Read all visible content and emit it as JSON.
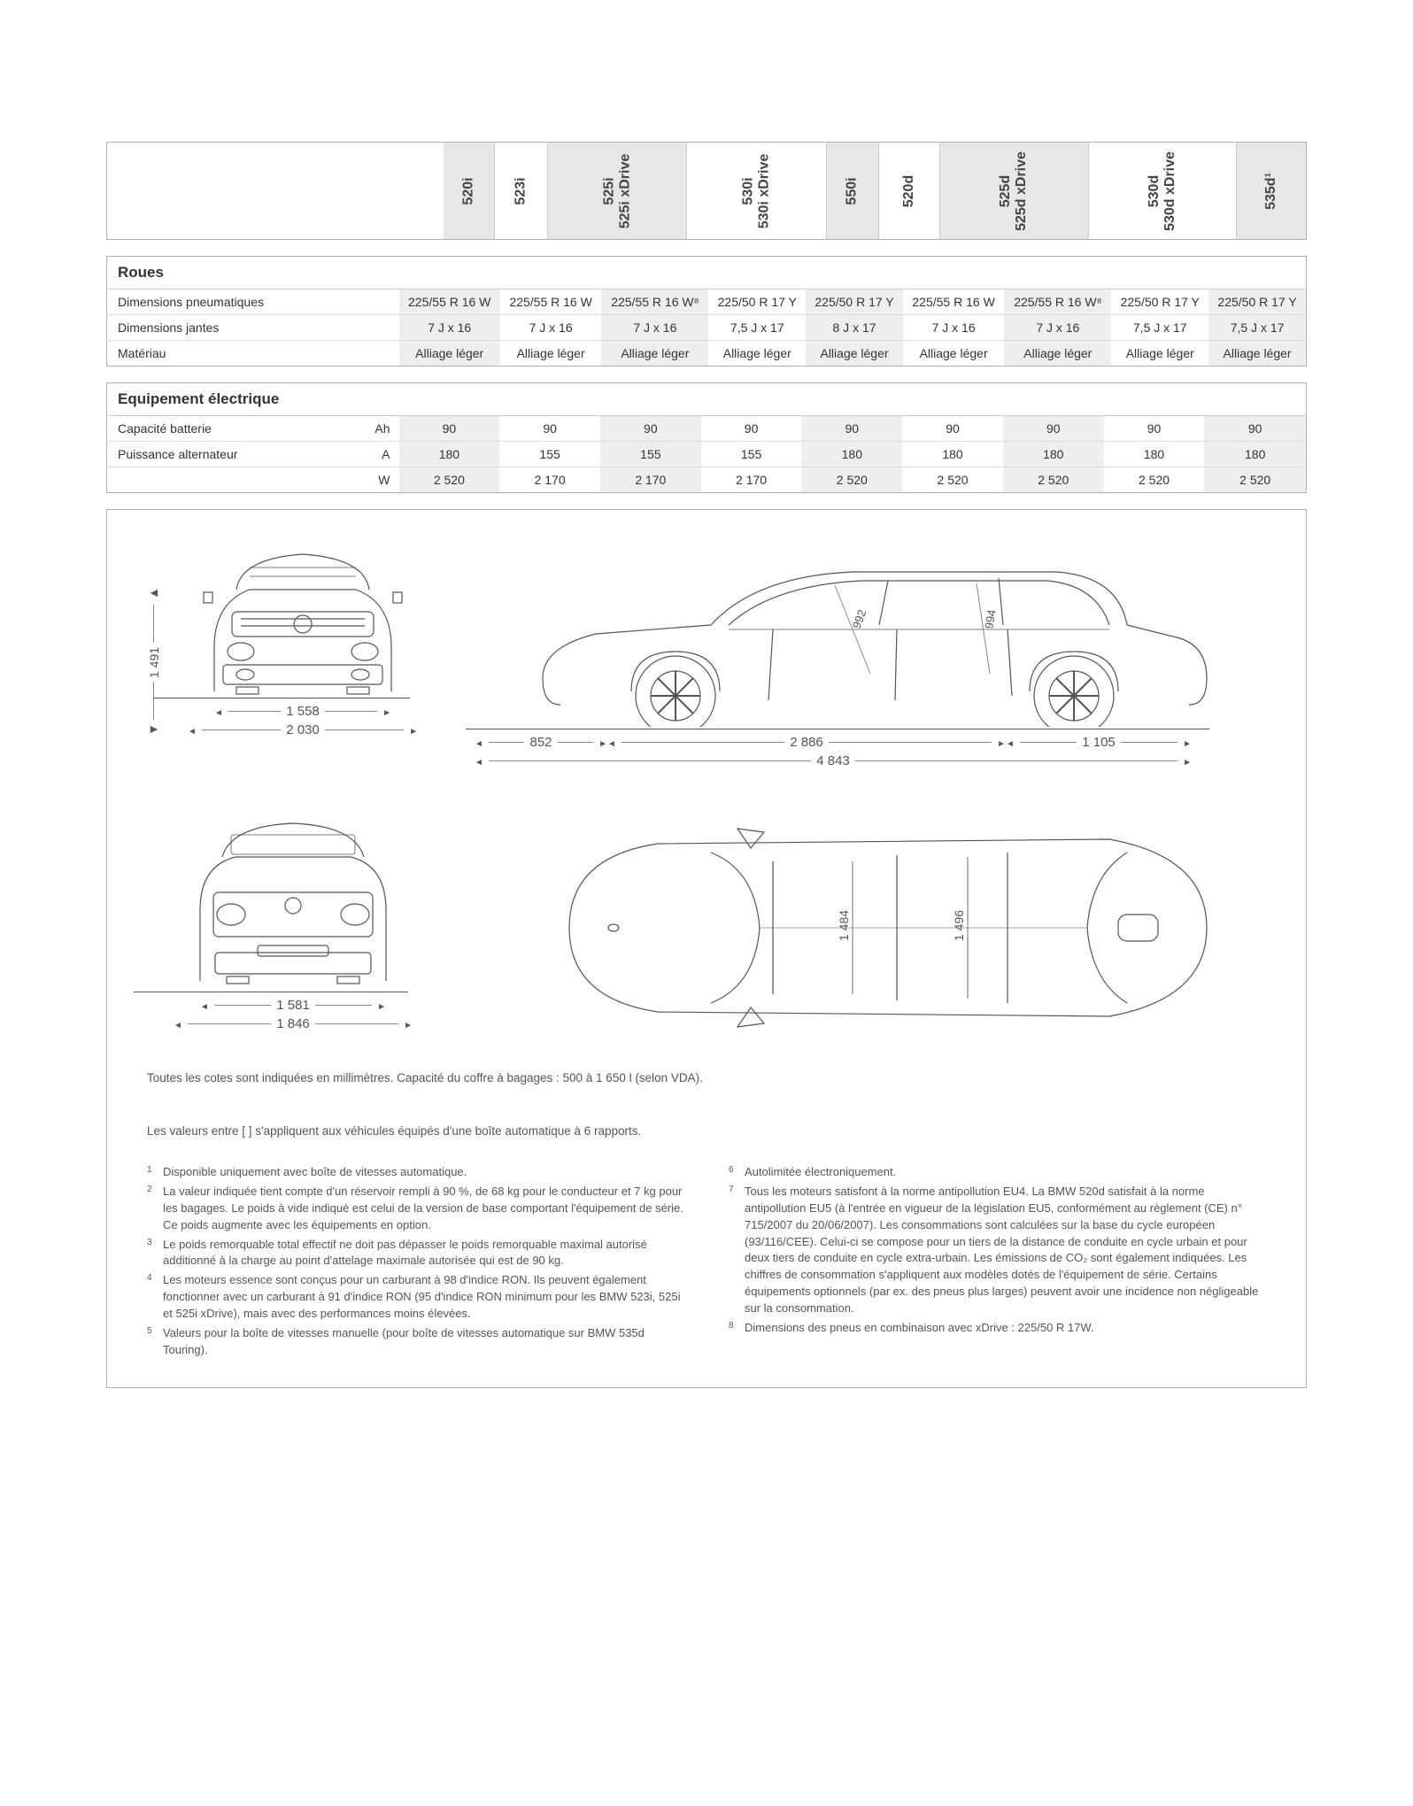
{
  "columns": [
    {
      "label": "520i",
      "shaded": true
    },
    {
      "label": "523i",
      "shaded": false
    },
    {
      "label": "525i\n525i xDrive",
      "shaded": true
    },
    {
      "label": "530i\n530i xDrive",
      "shaded": false
    },
    {
      "label": "550i",
      "shaded": true
    },
    {
      "label": "520d",
      "shaded": false
    },
    {
      "label": "525d\n525d xDrive",
      "shaded": true
    },
    {
      "label": "530d\n530d xDrive",
      "shaded": false
    },
    {
      "label": "535d¹",
      "shaded": true
    }
  ],
  "col_label_width": 380,
  "sections": [
    {
      "title": "Roues",
      "rows": [
        {
          "label": "Dimensions pneumatiques",
          "unit": "",
          "values": [
            "225/55 R 16 W",
            "225/55 R 16 W",
            "225/55 R 16 W⁸",
            "225/50 R 17 Y",
            "225/50 R 17 Y",
            "225/55 R 16 W",
            "225/55 R 16 W⁸",
            "225/50 R 17 Y",
            "225/50 R 17 Y"
          ]
        },
        {
          "label": "Dimensions jantes",
          "unit": "",
          "values": [
            "7 J x 16",
            "7 J x 16",
            "7 J x 16",
            "7,5 J x 17",
            "8 J x 17",
            "7 J x 16",
            "7 J x 16",
            "7,5 J x 17",
            "7,5 J x 17"
          ]
        },
        {
          "label": "Matériau",
          "unit": "",
          "values": [
            "Alliage léger",
            "Alliage léger",
            "Alliage léger",
            "Alliage léger",
            "Alliage léger",
            "Alliage léger",
            "Alliage léger",
            "Alliage léger",
            "Alliage léger"
          ]
        }
      ]
    },
    {
      "title": "Equipement électrique",
      "rows": [
        {
          "label": "Capacité batterie",
          "unit": "Ah",
          "values": [
            "90",
            "90",
            "90",
            "90",
            "90",
            "90",
            "90",
            "90",
            "90"
          ]
        },
        {
          "label": "Puissance alternateur",
          "unit": "A",
          "values": [
            "180",
            "155",
            "155",
            "155",
            "180",
            "180",
            "180",
            "180",
            "180"
          ]
        },
        {
          "label": "",
          "unit": "W",
          "values": [
            "2 520",
            "2 170",
            "2 170",
            "2 170",
            "2 520",
            "2 520",
            "2 520",
            "2 520",
            "2 520"
          ]
        }
      ]
    }
  ],
  "diagram": {
    "front": {
      "track": "1 558",
      "width": "2 030",
      "height": "1 491"
    },
    "side": {
      "front_overhang": "852",
      "wheelbase": "2 886",
      "rear_overhang": "1 105",
      "length": "4 843",
      "headroom_front": "992",
      "headroom_rear": "994"
    },
    "rear": {
      "track": "1 581",
      "width": "1 846"
    },
    "top": {
      "shoulder_front": "1 484",
      "shoulder_rear": "1 496"
    },
    "caption": "Toutes les cotes sont indiquées en millimètres. Capacité du coffre à bagages : 500 à 1 650 l (selon VDA)."
  },
  "footnotes_intro": "Les valeurs entre [ ] s'appliquent aux véhicules équipés d'une boîte automatique à 6 rapports.",
  "footnotes_left": [
    {
      "n": "1",
      "t": "Disponible uniquement avec boîte de vitesses automatique."
    },
    {
      "n": "2",
      "t": "La valeur indiquée tient compte d'un réservoir rempli à 90 %, de 68 kg pour le conducteur et 7 kg pour les bagages. Le poids à vide indiqué est celui de la version de base comportant l'équipement de série. Ce poids augmente avec les équipements en option."
    },
    {
      "n": "3",
      "t": "Le poids remorquable total effectif ne doit pas dépasser le poids remorquable maximal autorisé additionné à la charge au point d'attelage maximale autorisée qui est de 90 kg."
    },
    {
      "n": "4",
      "t": "Les moteurs essence sont conçus pour un carburant à 98 d'indice RON. Ils peuvent également fonctionner avec un carburant à 91 d'indice RON (95 d'indice RON minimum pour les BMW 523i, 525i et 525i xDrive), mais avec des performances moins élevées."
    },
    {
      "n": "5",
      "t": "Valeurs pour la boîte de vitesses manuelle (pour boîte de vitesses automatique sur BMW 535d Touring)."
    }
  ],
  "footnotes_right": [
    {
      "n": "6",
      "t": "Autolimitée électroniquement."
    },
    {
      "n": "7",
      "t": "Tous les moteurs satisfont à la norme antipollution EU4. La BMW 520d satisfait à la norme antipollution EU5 (à l'entrée en vigueur de la législation EU5, conformément au règlement (CE) n° 715/2007 du 20/06/2007). Les consommations sont calculées sur la base du cycle européen (93/116/CEE). Celui-ci se compose pour un tiers de la distance de conduite en cycle urbain et pour deux tiers de conduite en cycle extra-urbain. Les émissions de CO₂ sont également indiquées. Les chiffres de consommation s'appliquent aux modèles dotés de l'équipement de série. Certains équipements optionnels (par ex. des pneus plus larges) peuvent avoir une incidence non négligeable sur la consommation."
    },
    {
      "n": "8",
      "t": "Dimensions des pneus en combinaison avec xDrive : 225/50 R 17W."
    }
  ],
  "colors": {
    "border": "#b0b0b0",
    "shade": "#e7e7e7",
    "text": "#555"
  }
}
